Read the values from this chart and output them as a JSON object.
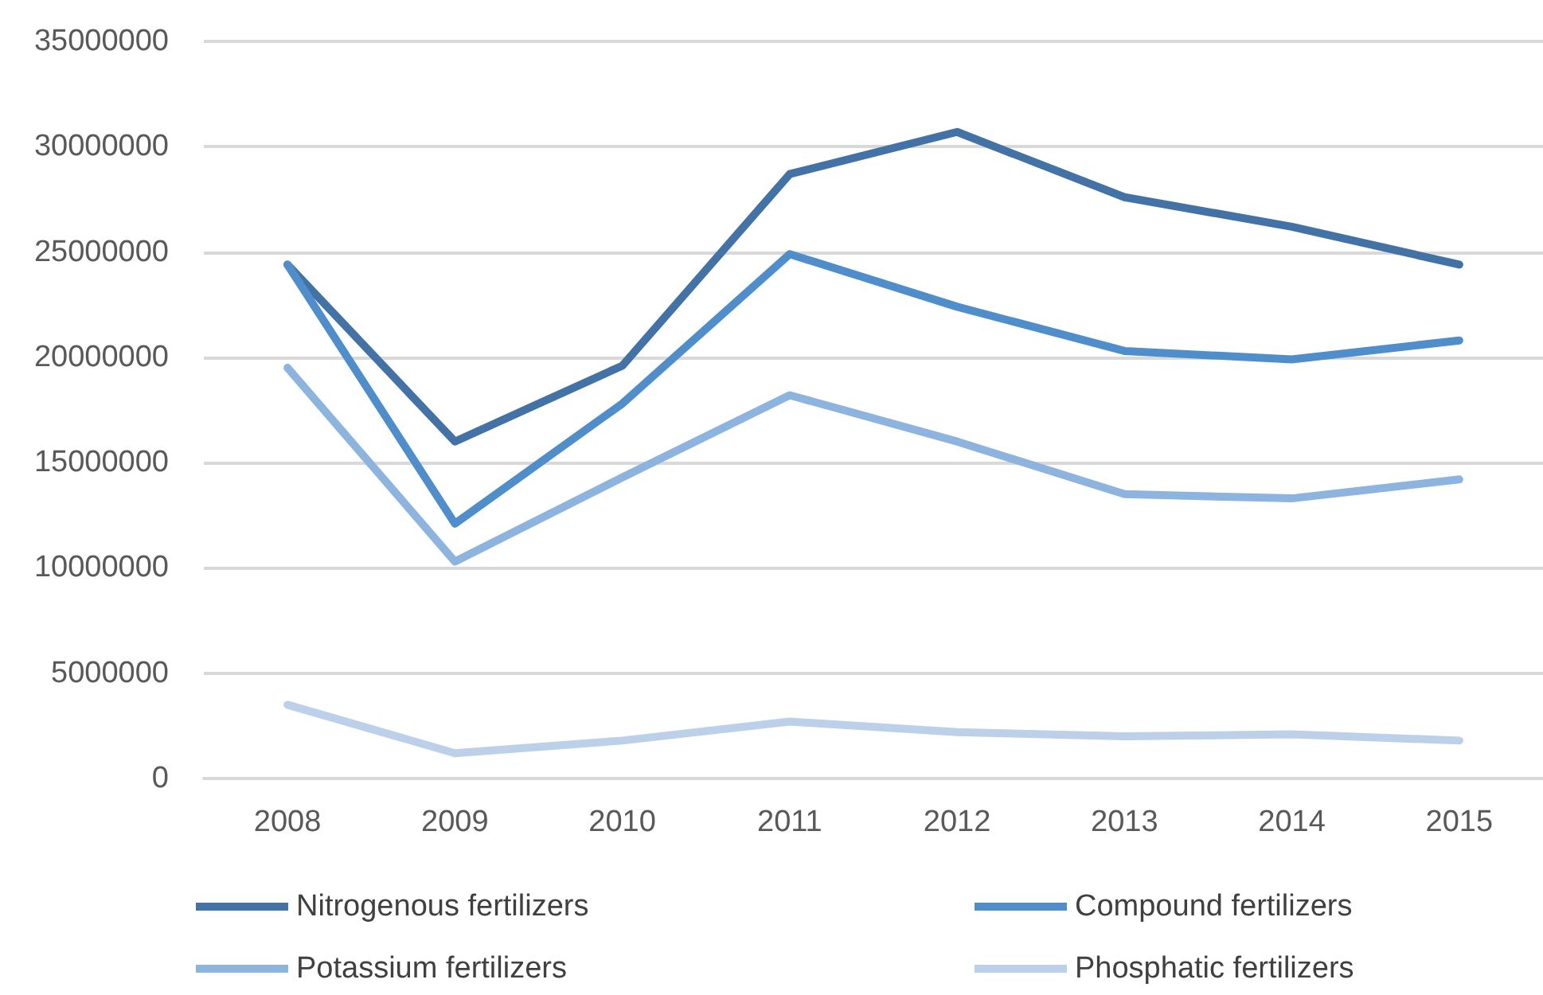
{
  "chart_data": {
    "type": "line",
    "categories": [
      "2008",
      "2009",
      "2010",
      "2011",
      "2012",
      "2013",
      "2014",
      "2015"
    ],
    "series": [
      {
        "name": "Nitrogenous fertilizers",
        "color": "#4372a6",
        "values": [
          24400000,
          16000000,
          19600000,
          28700000,
          30700000,
          27600000,
          26200000,
          24400000
        ]
      },
      {
        "name": "Compound fertilizers",
        "color": "#4f8ecb",
        "values": [
          24400000,
          12100000,
          17800000,
          24900000,
          22400000,
          20300000,
          19900000,
          20800000
        ]
      },
      {
        "name": "Potassium fertilizers",
        "color": "#8db3df",
        "values": [
          19500000,
          10300000,
          14300000,
          18200000,
          16000000,
          13500000,
          13300000,
          14200000
        ]
      },
      {
        "name": "Phosphatic fertilizers",
        "color": "#bcd0ea",
        "values": [
          3500000,
          1200000,
          1800000,
          2700000,
          2200000,
          2000000,
          2100000,
          1800000
        ]
      }
    ],
    "ylim": [
      0,
      35000000
    ],
    "yticks": [
      0,
      5000000,
      10000000,
      15000000,
      20000000,
      25000000,
      30000000,
      35000000
    ],
    "grid": "y",
    "legend": "bottom",
    "marker": "none",
    "line_style": "solid"
  }
}
